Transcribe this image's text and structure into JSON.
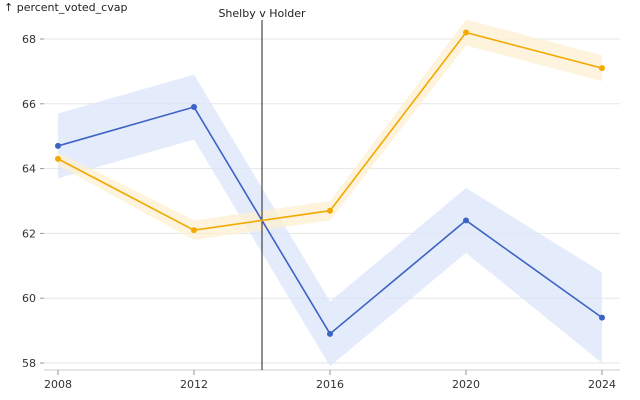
{
  "chart_data": {
    "type": "line",
    "ylabel": "↑ percent_voted_cvap",
    "xlabel": "",
    "x": [
      2008,
      2012,
      2016,
      2020,
      2024
    ],
    "xticks": [
      "2008",
      "2012",
      "2016",
      "2020",
      "2024"
    ],
    "ylim": [
      57.9,
      68.6
    ],
    "yticks": [
      58,
      60,
      62,
      64,
      66,
      68
    ],
    "ytick_labels": [
      "58",
      "60",
      "62",
      "64",
      "66",
      "68"
    ],
    "grid": "horizontal",
    "series": [
      {
        "color": "#3b63c4",
        "band_color": "#dbe4f8",
        "values": [
          64.7,
          65.9,
          58.9,
          62.4,
          59.4
        ],
        "upper": [
          65.7,
          66.9,
          59.9,
          63.4,
          60.8
        ],
        "lower": [
          63.7,
          64.9,
          57.9,
          61.4,
          58.0
        ]
      },
      {
        "color": "#f2a900",
        "band_color": "#fdf0d2",
        "values": [
          64.3,
          62.1,
          62.7,
          68.2,
          67.1
        ],
        "upper": [
          64.5,
          62.4,
          63.0,
          68.6,
          67.5
        ],
        "lower": [
          64.1,
          61.8,
          62.4,
          67.8,
          66.7
        ]
      }
    ],
    "annotations": [
      {
        "label": "Shelby v Holder",
        "x": 2014
      }
    ]
  }
}
